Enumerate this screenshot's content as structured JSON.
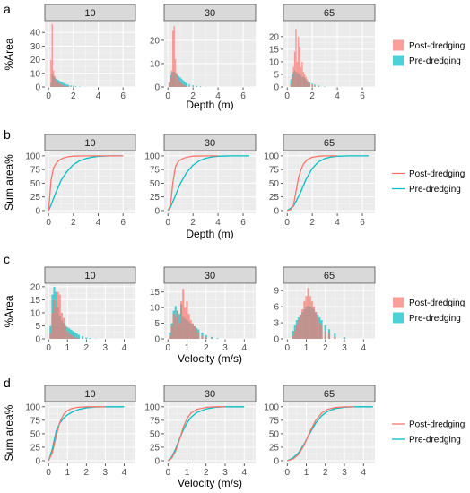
{
  "colors": {
    "post": "#f8766d",
    "pre": "#00bfc4"
  },
  "legend_labels": {
    "post": "Post-dredging",
    "pre": "Pre-dredging"
  },
  "chart_data": [
    {
      "letter": "a",
      "type": "bar",
      "ylabel": "%Area",
      "xlabel": "Depth (m)",
      "xlim": [
        -0.3,
        7.0
      ],
      "xticks": [
        0,
        2,
        4,
        6
      ],
      "bin_width": 0.1,
      "facets": [
        {
          "label": "10",
          "ylim": [
            0,
            48
          ],
          "yticks": [
            0,
            10,
            20,
            30,
            40
          ],
          "bins": [
            0.2,
            0.3,
            0.4,
            0.5,
            0.6,
            0.7,
            0.8,
            0.9,
            1.0,
            1.1,
            1.2,
            1.3,
            1.4,
            1.5,
            1.6,
            1.8,
            2.0,
            2.2,
            2.5,
            3.0
          ],
          "post": [
            20,
            46,
            12,
            8,
            5,
            4,
            3,
            2.5,
            2,
            1.5,
            1,
            1,
            0.5,
            0.5,
            0.3,
            0.2,
            0.1,
            0,
            0,
            0
          ],
          "pre": [
            3,
            10,
            8,
            7,
            6,
            5.5,
            5,
            4.5,
            4,
            3.5,
            3,
            2.5,
            2,
            1.8,
            1.5,
            1.2,
            1,
            0.6,
            0.3,
            0.1
          ]
        },
        {
          "label": "30",
          "ylim": [
            0,
            28
          ],
          "yticks": [
            0,
            10,
            20
          ],
          "bins": [
            0.1,
            0.2,
            0.3,
            0.4,
            0.5,
            0.6,
            0.7,
            0.8,
            0.9,
            1.0,
            1.1,
            1.2,
            1.3,
            1.4,
            1.5,
            1.7,
            2.0,
            2.3,
            2.6,
            3.0
          ],
          "post": [
            2,
            4,
            7,
            24,
            26,
            12,
            6,
            4,
            3,
            2,
            1.5,
            1,
            0.8,
            0.5,
            0.3,
            0.2,
            0.1,
            0,
            0,
            0
          ],
          "pre": [
            2,
            5,
            6,
            6.5,
            6.5,
            6,
            5.5,
            5,
            4.5,
            4,
            3.5,
            3,
            2.5,
            2,
            1.6,
            1.2,
            0.8,
            0.5,
            0.3,
            0.1
          ]
        },
        {
          "label": "65",
          "ylim": [
            0,
            26
          ],
          "yticks": [
            0,
            5,
            10,
            15,
            20
          ],
          "bins": [
            0.3,
            0.4,
            0.5,
            0.6,
            0.7,
            0.8,
            0.9,
            1.0,
            1.1,
            1.2,
            1.3,
            1.4,
            1.5,
            1.6,
            1.7,
            1.8,
            2.0,
            2.2,
            2.5,
            3.0
          ],
          "post": [
            1,
            4,
            8,
            14,
            23,
            10,
            20,
            16,
            8,
            10,
            6,
            5,
            4,
            3,
            2,
            1.5,
            1,
            0.5,
            0.2,
            0
          ],
          "pre": [
            3,
            5,
            6,
            6.5,
            6,
            5.5,
            5.5,
            5,
            4.5,
            4,
            4,
            3.5,
            3,
            2.5,
            2,
            1.8,
            1.4,
            1,
            0.6,
            0.2
          ]
        }
      ]
    },
    {
      "letter": "b",
      "type": "line",
      "ylabel": "Sum area%",
      "xlabel": "Depth (m)",
      "xlim": [
        -0.3,
        7.0
      ],
      "xticks": [
        0,
        2,
        4,
        6
      ],
      "ylim": [
        -5,
        108
      ],
      "yticks": [
        0,
        25,
        50,
        75,
        100
      ],
      "facets": [
        {
          "label": "10",
          "post": {
            "x": [
              0,
              0.2,
              0.4,
              0.6,
              0.8,
              1.0,
              1.3,
              1.6,
              2.0,
              3.0,
              6.0
            ],
            "y": [
              0,
              55,
              78,
              86,
              91,
              94,
              97,
              98.5,
              99.5,
              100,
              100
            ]
          },
          "pre": {
            "x": [
              0,
              0.2,
              0.5,
              1.0,
              1.5,
              2.0,
              2.5,
              3.0,
              3.5,
              4.0,
              5.0,
              6.0
            ],
            "y": [
              0,
              10,
              28,
              55,
              72,
              84,
              91,
              95,
              97.5,
              99,
              100,
              100
            ]
          }
        },
        {
          "label": "30",
          "post": {
            "x": [
              0,
              0.2,
              0.4,
              0.6,
              0.8,
              1.0,
              1.3,
              1.6,
              2.0,
              3.0,
              4.0
            ],
            "y": [
              0,
              10,
              52,
              80,
              89,
              93,
              96,
              98,
              99.5,
              100,
              100
            ]
          },
          "pre": {
            "x": [
              0,
              0.2,
              0.5,
              1.0,
              1.5,
              2.0,
              2.5,
              3.0,
              3.5,
              4.0,
              5.0,
              6.5
            ],
            "y": [
              0,
              6,
              22,
              50,
              70,
              83,
              91,
              95.5,
              98,
              99.3,
              100,
              100
            ]
          }
        },
        {
          "label": "65",
          "post": {
            "x": [
              0,
              0.3,
              0.5,
              0.7,
              0.9,
              1.1,
              1.3,
              1.6,
              2.0,
              2.5,
              3.0,
              4.0
            ],
            "y": [
              0,
              2,
              10,
              35,
              60,
              75,
              85,
              93,
              97.5,
              99.3,
              100,
              100
            ]
          },
          "pre": {
            "x": [
              0,
              0.5,
              1.0,
              1.5,
              2.0,
              2.5,
              3.0,
              3.5,
              4.0,
              5.0,
              6.5
            ],
            "y": [
              0,
              8,
              30,
              57,
              77,
              89,
              95,
              98,
              99.3,
              100,
              100
            ]
          }
        }
      ]
    },
    {
      "letter": "c",
      "type": "bar",
      "ylabel": "%Area",
      "xlabel": "Velocity (m/s)",
      "xlim": [
        -0.2,
        4.6
      ],
      "xticks": [
        0,
        1,
        2,
        3,
        4
      ],
      "bin_width": 0.1,
      "facets": [
        {
          "label": "10",
          "ylim": [
            0,
            21
          ],
          "yticks": [
            0,
            5,
            10,
            15,
            20
          ],
          "bins": [
            0.1,
            0.2,
            0.3,
            0.4,
            0.5,
            0.6,
            0.7,
            0.8,
            0.9,
            1.0,
            1.1,
            1.2,
            1.3,
            1.4,
            1.5,
            1.6,
            1.8,
            2.0,
            2.2,
            2.5
          ],
          "post": [
            2,
            10,
            15,
            12,
            18,
            17,
            10,
            8,
            5,
            3,
            2,
            1.5,
            1,
            0.5,
            0.3,
            0.2,
            0.1,
            0,
            0,
            0
          ],
          "pre": [
            5,
            17,
            20,
            18,
            12,
            9,
            7,
            6,
            5,
            4.5,
            4,
            3.5,
            3,
            2.5,
            2,
            1.5,
            1,
            0.5,
            0.3,
            0.1
          ]
        },
        {
          "label": "30",
          "ylim": [
            0,
            17.5
          ],
          "yticks": [
            0,
            5,
            10,
            15
          ],
          "bins": [
            0.1,
            0.2,
            0.3,
            0.4,
            0.5,
            0.6,
            0.7,
            0.8,
            0.9,
            1.0,
            1.1,
            1.2,
            1.3,
            1.4,
            1.5,
            1.6,
            1.8,
            2.0,
            2.3,
            2.6
          ],
          "post": [
            1,
            4,
            8,
            7,
            9,
            5,
            12,
            16,
            10,
            12,
            8,
            6,
            5,
            4,
            3,
            2,
            1,
            0.5,
            0.2,
            0
          ],
          "pre": [
            2,
            5,
            9,
            10.5,
            9,
            8,
            11,
            7,
            6.5,
            6,
            5.5,
            5,
            4.5,
            4,
            3.5,
            3,
            2,
            1.2,
            0.6,
            0.2
          ]
        },
        {
          "label": "65",
          "ylim": [
            0,
            10.2
          ],
          "yticks": [
            0,
            3,
            6,
            9
          ],
          "bins": [
            0.3,
            0.4,
            0.5,
            0.6,
            0.7,
            0.8,
            0.9,
            1.0,
            1.1,
            1.2,
            1.3,
            1.4,
            1.5,
            1.6,
            1.7,
            1.8,
            2.0,
            2.2,
            2.5,
            3.0
          ],
          "post": [
            0.5,
            1.5,
            2.5,
            3.5,
            4.5,
            5.5,
            7,
            8,
            9.5,
            8,
            7,
            6,
            5,
            4,
            3,
            2.5,
            1.5,
            1,
            0.4,
            0.1
          ],
          "pre": [
            1.5,
            2.5,
            3.5,
            4,
            4.5,
            5,
            5.5,
            6,
            6.2,
            6,
            5.8,
            5.5,
            5,
            4.5,
            4,
            3.5,
            2.5,
            1.8,
            1,
            0.3
          ]
        }
      ]
    },
    {
      "letter": "d",
      "type": "line",
      "ylabel": "Sum area%",
      "xlabel": "Velocity (m/s)",
      "xlim": [
        -0.2,
        4.6
      ],
      "xticks": [
        0,
        1,
        2,
        3,
        4
      ],
      "ylim": [
        -5,
        108
      ],
      "yticks": [
        0,
        25,
        50,
        75,
        100
      ],
      "facets": [
        {
          "label": "10",
          "post": {
            "x": [
              0,
              0.2,
              0.4,
              0.6,
              0.8,
              1.0,
              1.2,
              1.5,
              2.0,
              2.5,
              3.0
            ],
            "y": [
              0,
              15,
              45,
              72,
              86,
              93,
              96.5,
              98.8,
              100,
              100,
              100
            ]
          },
          "pre": {
            "x": [
              0,
              0.2,
              0.4,
              0.6,
              0.8,
              1.0,
              1.3,
              1.6,
              2.0,
              2.5,
              3.0,
              4.0
            ],
            "y": [
              0,
              22,
              55,
              70,
              79,
              85,
              91,
              95,
              98,
              99.5,
              100,
              100
            ]
          }
        },
        {
          "label": "30",
          "post": {
            "x": [
              0,
              0.2,
              0.4,
              0.6,
              0.8,
              1.0,
              1.2,
              1.5,
              2.0,
              2.5,
              3.0
            ],
            "y": [
              0,
              5,
              18,
              38,
              62,
              78,
              88,
              95,
              99,
              100,
              100
            ]
          },
          "pre": {
            "x": [
              0,
              0.2,
              0.4,
              0.6,
              0.8,
              1.0,
              1.2,
              1.5,
              2.0,
              2.5,
              3.0,
              4.0
            ],
            "y": [
              0,
              7,
              22,
              40,
              57,
              70,
              80,
              89,
              96,
              99,
              100,
              100
            ]
          }
        },
        {
          "label": "65",
          "post": {
            "x": [
              0,
              0.3,
              0.6,
              0.9,
              1.2,
              1.5,
              1.8,
              2.1,
              2.5,
              3.0,
              3.5
            ],
            "y": [
              0,
              3,
              12,
              30,
              55,
              75,
              88,
              95,
              98.5,
              99.8,
              100
            ]
          },
          "pre": {
            "x": [
              0,
              0.3,
              0.6,
              0.9,
              1.2,
              1.5,
              1.8,
              2.1,
              2.5,
              3.0,
              3.5,
              4.5
            ],
            "y": [
              0,
              5,
              15,
              32,
              52,
              70,
              83,
              91,
              96.5,
              99,
              100,
              100
            ]
          }
        }
      ]
    }
  ]
}
